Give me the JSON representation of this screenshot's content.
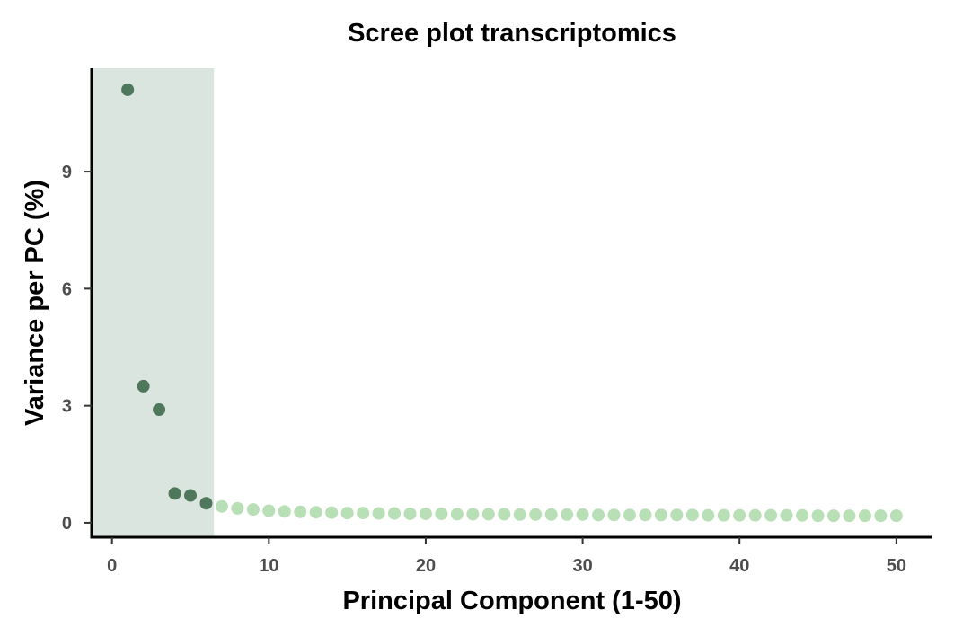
{
  "chart_data": {
    "type": "scatter",
    "title": "Scree plot transcriptomics",
    "xlabel": "Principal Component (1-50)",
    "ylabel": "Variance per PC (%)",
    "xlim": [
      -1.3,
      52.3
    ],
    "ylim": [
      -0.37,
      11.65
    ],
    "x_ticks": [
      0,
      10,
      20,
      30,
      40,
      50
    ],
    "y_ticks": [
      0,
      3,
      6,
      9
    ],
    "grid": false,
    "legend": "none",
    "highlight_region": {
      "x_start": -1.3,
      "x_end": 6.5,
      "color": "#dbe5df"
    },
    "colors": {
      "highlighted": "#4e775b",
      "other": "#b8dfb5"
    },
    "series": [
      {
        "x": [
          1,
          2,
          3,
          4,
          5,
          6
        ],
        "values": [
          11.1,
          3.5,
          2.9,
          0.75,
          0.7,
          0.5
        ],
        "color": "#4e775b"
      },
      {
        "x": [
          7,
          8,
          9,
          10,
          11,
          12,
          13,
          14,
          15,
          16,
          17,
          18,
          19,
          20,
          21,
          22,
          23,
          24,
          25,
          26,
          27,
          28,
          29,
          30,
          31,
          32,
          33,
          34,
          35,
          36,
          37,
          38,
          39,
          40,
          41,
          42,
          43,
          44,
          45,
          46,
          47,
          48,
          49,
          50
        ],
        "values": [
          0.42,
          0.37,
          0.34,
          0.31,
          0.29,
          0.28,
          0.27,
          0.26,
          0.25,
          0.25,
          0.24,
          0.24,
          0.23,
          0.23,
          0.23,
          0.22,
          0.22,
          0.22,
          0.22,
          0.21,
          0.21,
          0.21,
          0.21,
          0.21,
          0.2,
          0.2,
          0.2,
          0.2,
          0.2,
          0.2,
          0.2,
          0.19,
          0.19,
          0.19,
          0.19,
          0.19,
          0.19,
          0.19,
          0.18,
          0.18,
          0.18,
          0.18,
          0.18,
          0.18
        ],
        "color": "#b8dfb5"
      }
    ]
  }
}
